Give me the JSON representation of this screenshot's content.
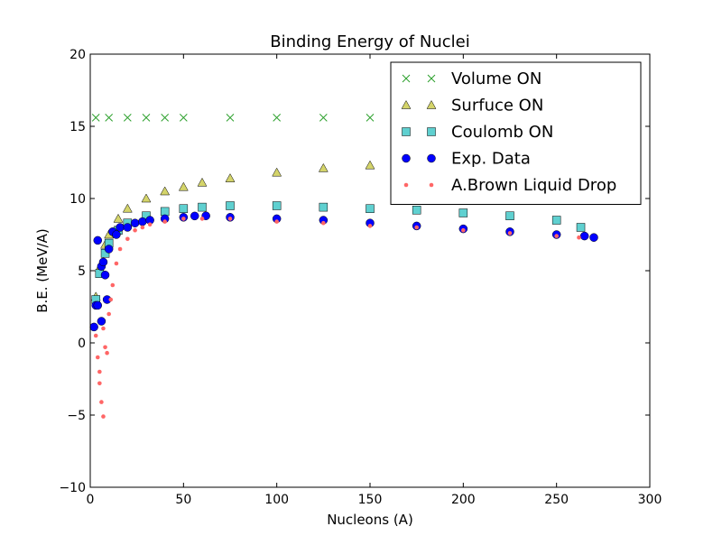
{
  "chart_data": {
    "type": "scatter",
    "title": "Binding Energy of Nuclei",
    "xlabel": "Nucleons (A)",
    "ylabel": "B.E. (MeV/A)",
    "xlim": [
      0,
      300
    ],
    "ylim": [
      -10,
      20
    ],
    "x_ticks": [
      0,
      50,
      100,
      150,
      200,
      250,
      300
    ],
    "y_ticks": [
      -10,
      -5,
      0,
      5,
      10,
      15,
      20
    ],
    "grid": false,
    "legend_position": "top-right",
    "series": [
      {
        "name": "Volume ON",
        "marker": "x",
        "color": "#2ca02c",
        "x": [
          3,
          10,
          20,
          30,
          40,
          50,
          75,
          100,
          125,
          150,
          175,
          200,
          225,
          250,
          263
        ],
        "y": [
          15.6,
          15.6,
          15.6,
          15.6,
          15.6,
          15.6,
          15.6,
          15.6,
          15.6,
          15.6,
          15.6,
          15.6,
          15.6,
          15.6,
          15.6
        ]
      },
      {
        "name": "Surfuce ON",
        "marker": "triangle",
        "color": "#d4d46a",
        "x": [
          3,
          5,
          8,
          10,
          15,
          20,
          30,
          40,
          50,
          60,
          75,
          100,
          125,
          150,
          175,
          200,
          225,
          250,
          263
        ],
        "y": [
          3.2,
          5.2,
          6.8,
          7.5,
          8.6,
          9.3,
          10.0,
          10.5,
          10.8,
          11.1,
          11.4,
          11.8,
          12.1,
          12.3,
          12.5,
          12.7,
          12.8,
          12.9,
          13.0
        ]
      },
      {
        "name": "Coulomb ON",
        "marker": "square",
        "color": "#5fd0d0",
        "x": [
          3,
          5,
          8,
          10,
          15,
          20,
          30,
          40,
          50,
          60,
          75,
          100,
          125,
          150,
          175,
          200,
          225,
          250,
          263
        ],
        "y": [
          3.0,
          4.8,
          6.2,
          6.9,
          7.8,
          8.3,
          8.8,
          9.1,
          9.3,
          9.4,
          9.5,
          9.5,
          9.4,
          9.3,
          9.2,
          9.0,
          8.8,
          8.5,
          8.0
        ]
      },
      {
        "name": "Exp. Data",
        "marker": "circle",
        "color": "#0000ff",
        "x": [
          2,
          3,
          4,
          4,
          6,
          6,
          7,
          8,
          9,
          10,
          12,
          14,
          16,
          20,
          24,
          28,
          32,
          40,
          50,
          56,
          62,
          75,
          100,
          125,
          150,
          175,
          200,
          225,
          250,
          265,
          270
        ],
        "y": [
          1.1,
          2.6,
          7.1,
          2.6,
          5.3,
          1.5,
          5.6,
          4.7,
          3.0,
          6.5,
          7.7,
          7.5,
          8.0,
          8.0,
          8.3,
          8.4,
          8.5,
          8.6,
          8.7,
          8.79,
          8.8,
          8.7,
          8.6,
          8.5,
          8.3,
          8.1,
          7.9,
          7.7,
          7.5,
          7.4,
          7.3
        ]
      },
      {
        "name": "A.Brown Liquid Drop",
        "marker": "dot",
        "color": "#ff6666",
        "x": [
          3,
          4,
          5,
          5,
          6,
          7,
          7,
          8,
          9,
          10,
          11,
          12,
          14,
          16,
          20,
          24,
          28,
          32,
          40,
          50,
          60,
          75,
          100,
          125,
          150,
          175,
          200,
          225,
          250,
          262
        ],
        "y": [
          0.5,
          -1.0,
          -2.0,
          -2.8,
          -4.1,
          -5.1,
          1.0,
          -0.3,
          -0.7,
          2.0,
          3.0,
          4.0,
          5.5,
          6.5,
          7.2,
          7.8,
          8.0,
          8.2,
          8.4,
          8.6,
          8.6,
          8.6,
          8.4,
          8.3,
          8.1,
          8.0,
          7.8,
          7.6,
          7.4,
          7.3
        ]
      }
    ]
  }
}
